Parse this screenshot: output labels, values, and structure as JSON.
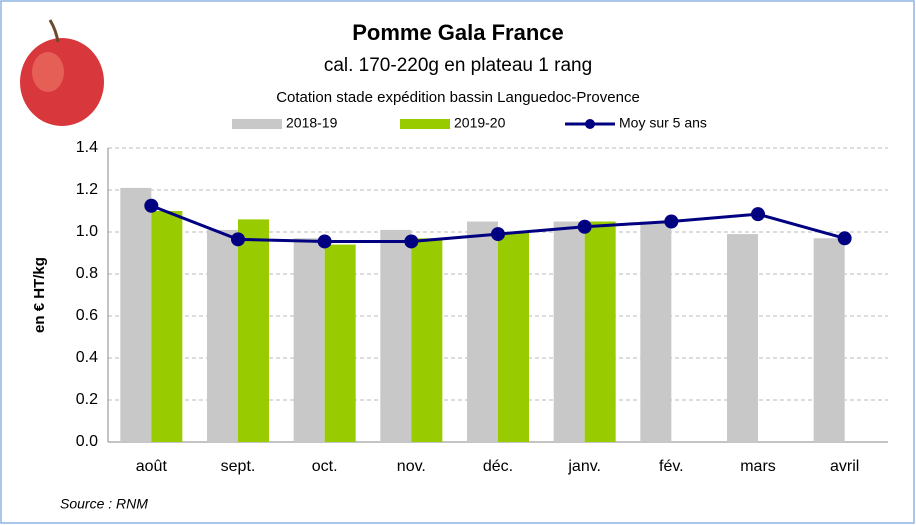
{
  "chart_data": {
    "type": "bar",
    "title": "Pomme Gala France",
    "subtitle": "cal. 170-220g en plateau 1 rang",
    "subtitle2": "Cotation stade expédition bassin Languedoc-Provence",
    "y_label": "en € HT/kg",
    "source": "Source : RNM",
    "categories": [
      "août",
      "sept.",
      "oct.",
      "nov.",
      "déc.",
      "janv.",
      "fév.",
      "mars",
      "avril"
    ],
    "series": [
      {
        "name": "2018-19",
        "type": "bar",
        "color": "#c8c8c8",
        "values": [
          1.21,
          1.01,
          0.97,
          1.01,
          1.05,
          1.05,
          1.05,
          0.99,
          0.97
        ]
      },
      {
        "name": "2019-20",
        "type": "bar",
        "color": "#99cc00",
        "values": [
          1.1,
          1.06,
          0.94,
          0.97,
          1.0,
          1.05,
          null,
          null,
          null
        ]
      },
      {
        "name": "Moy sur 5 ans",
        "type": "line",
        "color": "#000080",
        "values": [
          1.125,
          0.965,
          0.955,
          0.955,
          0.99,
          1.025,
          1.05,
          1.085,
          0.97
        ]
      }
    ],
    "ylim": [
      0,
      1.4
    ],
    "yticks": [
      {
        "value": 0,
        "label": "0.0"
      },
      {
        "value": 0.2,
        "label": "0.2"
      },
      {
        "value": 0.4,
        "label": "0.4"
      },
      {
        "value": 0.6,
        "label": "0.6"
      },
      {
        "value": 0.8,
        "label": "0.8"
      },
      {
        "value": 1,
        "label": "1.0"
      },
      {
        "value": 1.2,
        "label": "1.2"
      },
      {
        "value": 1.4,
        "label": "1.4"
      }
    ],
    "grid": true
  }
}
